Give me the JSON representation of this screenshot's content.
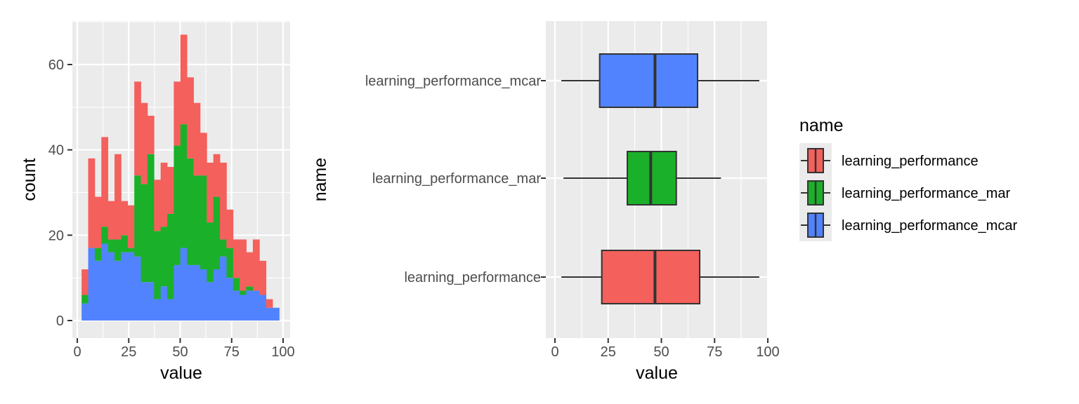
{
  "colors": {
    "panel_bg": "#EBEBEB",
    "grid": "#FFFFFF",
    "box_line": "#333333",
    "tick": "#333333"
  },
  "chart_data": [
    {
      "type": "bar",
      "subtype": "stacked-histogram",
      "xlabel": "value",
      "ylabel": "count",
      "xlim": [
        0,
        100
      ],
      "ylim": [
        0,
        70
      ],
      "x_ticks": [
        "0",
        "25",
        "50",
        "75",
        "100"
      ],
      "y_ticks": [
        "0",
        "20",
        "40",
        "60"
      ],
      "bin_width": 3.2,
      "bin_centers": [
        3.7,
        6.9,
        10.1,
        13.3,
        16.5,
        19.7,
        22.9,
        26.1,
        29.3,
        32.5,
        35.7,
        38.9,
        42.1,
        45.3,
        48.5,
        51.7,
        54.9,
        58.1,
        61.3,
        64.5,
        67.7,
        70.9,
        74.1,
        77.3,
        80.5,
        83.7,
        86.9,
        90.1,
        93.3,
        96.5
      ],
      "series": [
        {
          "name": "learning_performance_mcar",
          "color": "#5283FF",
          "values": [
            4,
            17,
            14,
            18,
            16,
            14,
            16,
            16,
            15,
            9,
            9,
            5,
            8,
            5,
            13,
            17,
            13,
            13,
            12,
            9,
            12,
            15,
            10,
            7,
            6,
            7,
            7,
            6,
            3,
            3
          ]
        },
        {
          "name": "learning_performance_mar",
          "color": "#1BB02A",
          "values": [
            2,
            0,
            3,
            4,
            3,
            5,
            4,
            1,
            19,
            23,
            30,
            16,
            14,
            20,
            28,
            29,
            25,
            21,
            22,
            14,
            17,
            4,
            7,
            3,
            1,
            1,
            0,
            0,
            0,
            0
          ]
        },
        {
          "name": "learning_performance",
          "color": "#F4605C",
          "values": [
            6,
            21,
            12,
            21,
            9,
            20,
            8,
            10,
            22,
            19,
            9,
            12,
            15,
            11,
            15,
            21,
            19,
            17,
            10,
            14,
            10,
            18,
            9,
            9,
            12,
            8,
            12,
            8,
            2,
            0
          ]
        }
      ]
    },
    {
      "type": "boxplot",
      "xlabel": "value",
      "ylabel": "name",
      "xlim": [
        0,
        100
      ],
      "x_ticks": [
        "0",
        "25",
        "50",
        "75",
        "100"
      ],
      "categories": [
        "learning_performance",
        "learning_performance_mar",
        "learning_performance_mcar"
      ],
      "boxes": [
        {
          "name": "learning_performance",
          "color": "#F4605C",
          "min": 3,
          "q1": 22,
          "median": 47,
          "q3": 68,
          "max": 96
        },
        {
          "name": "learning_performance_mar",
          "color": "#1BB02A",
          "min": 4,
          "q1": 34,
          "median": 45,
          "q3": 57,
          "max": 78
        },
        {
          "name": "learning_performance_mcar",
          "color": "#5283FF",
          "min": 3,
          "q1": 21,
          "median": 47,
          "q3": 67,
          "max": 96
        }
      ],
      "legend": {
        "title": "name",
        "position": "right",
        "entries": [
          {
            "label": "learning_performance",
            "color": "#F4605C"
          },
          {
            "label": "learning_performance_mar",
            "color": "#1BB02A"
          },
          {
            "label": "learning_performance_mcar",
            "color": "#5283FF"
          }
        ]
      }
    }
  ]
}
